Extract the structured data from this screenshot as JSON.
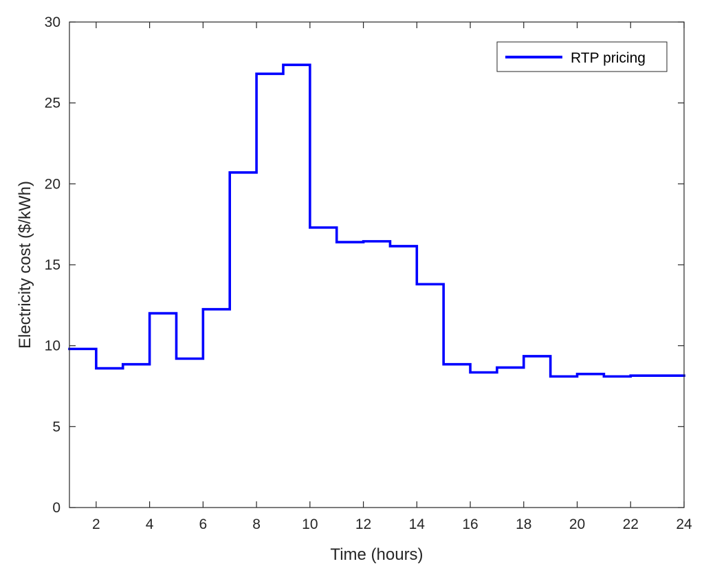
{
  "chart_data": {
    "type": "line",
    "step": "post",
    "title": "",
    "xlabel": "Time (hours)",
    "ylabel": "Electricity cost ($/kWh)",
    "xlim": [
      1,
      24
    ],
    "ylim": [
      0,
      30
    ],
    "xticks": [
      2,
      4,
      6,
      8,
      10,
      12,
      14,
      16,
      18,
      20,
      22,
      24
    ],
    "yticks": [
      0,
      5,
      10,
      15,
      20,
      25,
      30
    ],
    "grid": false,
    "legend_position": "top-right",
    "series": [
      {
        "name": "RTP pricing",
        "color": "#0000ff",
        "x": [
          1,
          2,
          3,
          4,
          5,
          6,
          7,
          8,
          9,
          10,
          11,
          12,
          13,
          14,
          15,
          16,
          17,
          18,
          19,
          20,
          21,
          22,
          23,
          24
        ],
        "values": [
          9.8,
          8.6,
          8.85,
          12.0,
          9.2,
          12.25,
          20.7,
          26.8,
          27.35,
          17.3,
          16.4,
          16.45,
          16.15,
          13.8,
          8.85,
          8.35,
          8.65,
          9.35,
          8.1,
          8.25,
          8.1,
          8.15,
          8.15,
          8.15
        ]
      }
    ]
  }
}
